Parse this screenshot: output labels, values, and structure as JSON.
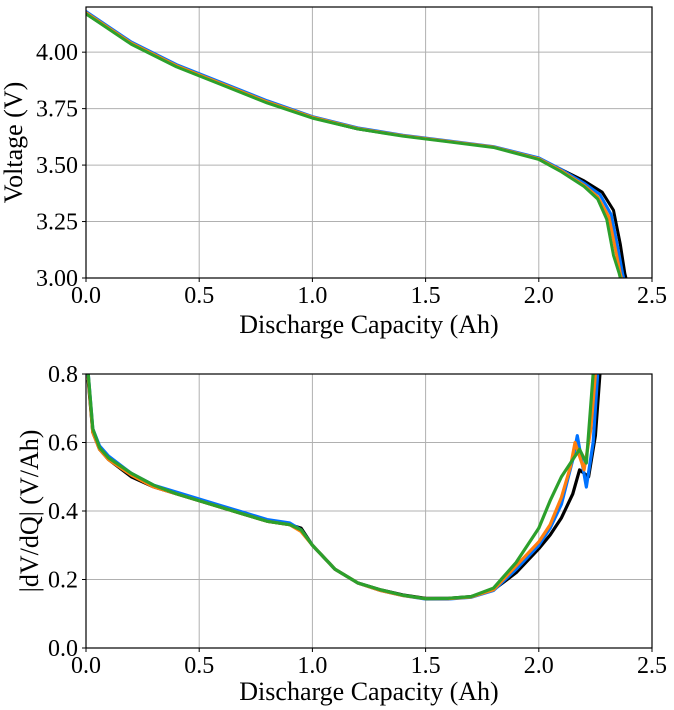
{
  "chart_data": [
    {
      "type": "line",
      "xlabel": "Discharge Capacity (Ah)",
      "ylabel": "Voltage (V)",
      "xlim": [
        0.0,
        2.5
      ],
      "ylim": [
        3.0,
        4.2
      ],
      "xticks": [
        "0.0",
        "0.5",
        "1.0",
        "1.5",
        "2.0",
        "2.5"
      ],
      "yticks": [
        "3.00",
        "3.25",
        "3.50",
        "3.75",
        "4.00"
      ],
      "xtick_values": [
        0.0,
        0.5,
        1.0,
        1.5,
        2.0,
        2.5
      ],
      "ytick_values": [
        3.0,
        3.25,
        3.5,
        3.75,
        4.0
      ],
      "grid": true,
      "series": [
        {
          "color": "#000000",
          "x": [
            0.0,
            0.2,
            0.4,
            0.6,
            0.8,
            1.0,
            1.2,
            1.4,
            1.6,
            1.8,
            2.0,
            2.1,
            2.2,
            2.28,
            2.33,
            2.36,
            2.38,
            2.385
          ],
          "y": [
            4.17,
            4.04,
            3.94,
            3.86,
            3.78,
            3.71,
            3.66,
            3.63,
            3.605,
            3.58,
            3.53,
            3.48,
            3.43,
            3.38,
            3.3,
            3.15,
            3.02,
            3.0
          ]
        },
        {
          "color": "#0072ff",
          "x": [
            0.0,
            0.2,
            0.4,
            0.6,
            0.8,
            1.0,
            1.2,
            1.4,
            1.6,
            1.8,
            2.0,
            2.1,
            2.2,
            2.27,
            2.32,
            2.35,
            2.37,
            2.375
          ],
          "y": [
            4.18,
            4.045,
            3.945,
            3.865,
            3.785,
            3.715,
            3.665,
            3.632,
            3.607,
            3.582,
            3.532,
            3.48,
            3.42,
            3.37,
            3.28,
            3.13,
            3.02,
            3.0
          ]
        },
        {
          "color": "#ff7f0e",
          "x": [
            0.0,
            0.2,
            0.4,
            0.6,
            0.8,
            1.0,
            1.2,
            1.4,
            1.6,
            1.8,
            2.0,
            2.1,
            2.2,
            2.26,
            2.31,
            2.34,
            2.36,
            2.365
          ],
          "y": [
            4.175,
            4.04,
            3.94,
            3.86,
            3.78,
            3.712,
            3.662,
            3.63,
            3.605,
            3.58,
            3.528,
            3.475,
            3.41,
            3.36,
            3.27,
            3.12,
            3.02,
            3.0
          ]
        },
        {
          "color": "#2ca02c",
          "x": [
            0.0,
            0.2,
            0.4,
            0.6,
            0.8,
            1.0,
            1.2,
            1.4,
            1.6,
            1.8,
            2.0,
            2.1,
            2.2,
            2.26,
            2.3,
            2.33,
            2.355,
            2.36
          ],
          "y": [
            4.17,
            4.035,
            3.935,
            3.855,
            3.775,
            3.708,
            3.66,
            3.628,
            3.603,
            3.578,
            3.525,
            3.47,
            3.405,
            3.35,
            3.26,
            3.1,
            3.02,
            3.0
          ]
        }
      ]
    },
    {
      "type": "line",
      "xlabel": "Discharge Capacity (Ah)",
      "ylabel": "|dV/dQ| (V/Ah)",
      "xlim": [
        0.0,
        2.5
      ],
      "ylim": [
        0.0,
        0.8
      ],
      "xticks": [
        "0.0",
        "0.5",
        "1.0",
        "1.5",
        "2.0",
        "2.5"
      ],
      "yticks": [
        "0.0",
        "0.2",
        "0.4",
        "0.6",
        "0.8"
      ],
      "xtick_values": [
        0.0,
        0.5,
        1.0,
        1.5,
        2.0,
        2.5
      ],
      "ytick_values": [
        0.0,
        0.2,
        0.4,
        0.6,
        0.8
      ],
      "grid": true,
      "series": [
        {
          "color": "#000000",
          "x": [
            0.01,
            0.03,
            0.06,
            0.1,
            0.2,
            0.3,
            0.4,
            0.5,
            0.6,
            0.7,
            0.8,
            0.9,
            0.95,
            1.0,
            1.1,
            1.2,
            1.3,
            1.4,
            1.5,
            1.6,
            1.7,
            1.8,
            1.9,
            2.0,
            2.05,
            2.1,
            2.15,
            2.18,
            2.22,
            2.25,
            2.27
          ],
          "y": [
            0.78,
            0.63,
            0.58,
            0.55,
            0.5,
            0.47,
            0.45,
            0.43,
            0.41,
            0.39,
            0.37,
            0.36,
            0.35,
            0.3,
            0.23,
            0.19,
            0.17,
            0.155,
            0.145,
            0.145,
            0.15,
            0.17,
            0.22,
            0.29,
            0.33,
            0.38,
            0.45,
            0.52,
            0.5,
            0.62,
            0.8
          ]
        },
        {
          "color": "#0072ff",
          "x": [
            0.01,
            0.03,
            0.06,
            0.1,
            0.2,
            0.3,
            0.4,
            0.5,
            0.6,
            0.7,
            0.8,
            0.9,
            0.95,
            1.0,
            1.1,
            1.2,
            1.3,
            1.4,
            1.5,
            1.6,
            1.7,
            1.8,
            1.9,
            2.0,
            2.05,
            2.1,
            2.15,
            2.17,
            2.21,
            2.24,
            2.26
          ],
          "y": [
            0.8,
            0.64,
            0.59,
            0.56,
            0.51,
            0.475,
            0.455,
            0.435,
            0.415,
            0.395,
            0.375,
            0.365,
            0.345,
            0.3,
            0.23,
            0.19,
            0.168,
            0.153,
            0.143,
            0.143,
            0.148,
            0.168,
            0.23,
            0.3,
            0.35,
            0.42,
            0.55,
            0.62,
            0.47,
            0.6,
            0.8
          ]
        },
        {
          "color": "#ff7f0e",
          "x": [
            0.01,
            0.03,
            0.06,
            0.1,
            0.2,
            0.3,
            0.4,
            0.5,
            0.6,
            0.7,
            0.8,
            0.9,
            0.95,
            1.0,
            1.1,
            1.2,
            1.3,
            1.4,
            1.5,
            1.6,
            1.7,
            1.8,
            1.9,
            2.0,
            2.05,
            2.1,
            2.14,
            2.16,
            2.2,
            2.23,
            2.25
          ],
          "y": [
            0.79,
            0.63,
            0.58,
            0.55,
            0.505,
            0.47,
            0.45,
            0.43,
            0.41,
            0.39,
            0.37,
            0.36,
            0.34,
            0.3,
            0.23,
            0.19,
            0.168,
            0.153,
            0.144,
            0.144,
            0.149,
            0.17,
            0.24,
            0.31,
            0.36,
            0.44,
            0.53,
            0.6,
            0.52,
            0.64,
            0.8
          ]
        },
        {
          "color": "#2ca02c",
          "x": [
            0.01,
            0.03,
            0.06,
            0.1,
            0.2,
            0.3,
            0.4,
            0.5,
            0.6,
            0.7,
            0.8,
            0.9,
            0.95,
            1.0,
            1.1,
            1.2,
            1.3,
            1.4,
            1.5,
            1.6,
            1.7,
            1.8,
            1.9,
            1.95,
            2.0,
            2.05,
            2.1,
            2.15,
            2.18,
            2.21,
            2.24
          ],
          "y": [
            0.8,
            0.64,
            0.585,
            0.555,
            0.51,
            0.475,
            0.45,
            0.43,
            0.41,
            0.39,
            0.37,
            0.36,
            0.345,
            0.3,
            0.23,
            0.19,
            0.17,
            0.154,
            0.144,
            0.145,
            0.15,
            0.175,
            0.25,
            0.3,
            0.35,
            0.43,
            0.5,
            0.55,
            0.58,
            0.54,
            0.8
          ]
        }
      ]
    }
  ]
}
